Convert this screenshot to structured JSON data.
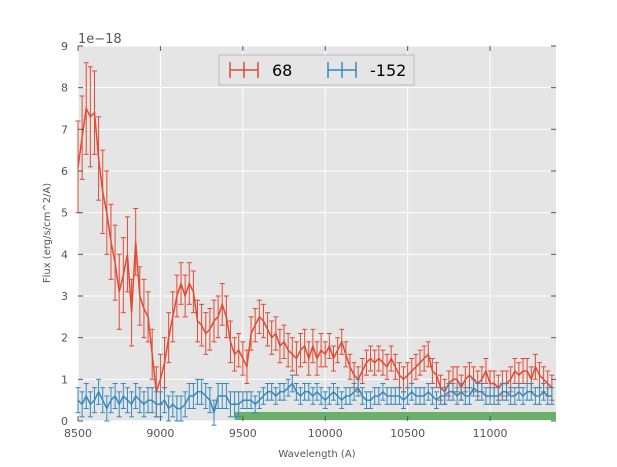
{
  "chart_data": {
    "type": "line",
    "title": "",
    "xlabel": "Wavelength (A)",
    "ylabel": "Flux (erg/s/cm^2/A)",
    "y_offset_label": "1e−18",
    "xlim": [
      8500,
      11400
    ],
    "ylim": [
      0,
      9
    ],
    "x_ticks": [
      "8500",
      "9000",
      "9500",
      "10000",
      "10500",
      "11000"
    ],
    "y_ticks": [
      "0",
      "1",
      "2",
      "3",
      "4",
      "5",
      "6",
      "7",
      "8",
      "9"
    ],
    "grid": true,
    "legend_placement": "top-center",
    "background_color": "#e5e5e5",
    "series": [
      {
        "name": "68",
        "color": "#e24a33",
        "x": [
          8500,
          8525,
          8550,
          8575,
          8600,
          8625,
          8650,
          8675,
          8700,
          8725,
          8750,
          8775,
          8800,
          8825,
          8850,
          8875,
          8900,
          8925,
          8950,
          8975,
          9000,
          9025,
          9050,
          9075,
          9100,
          9125,
          9150,
          9175,
          9200,
          9225,
          9250,
          9275,
          9300,
          9325,
          9350,
          9375,
          9400,
          9425,
          9450,
          9475,
          9500,
          9525,
          9550,
          9575,
          9600,
          9625,
          9650,
          9675,
          9700,
          9725,
          9750,
          9775,
          9800,
          9825,
          9850,
          9875,
          9900,
          9925,
          9950,
          9975,
          10000,
          10025,
          10050,
          10075,
          10100,
          10125,
          10150,
          10175,
          10200,
          10225,
          10250,
          10275,
          10300,
          10325,
          10350,
          10375,
          10400,
          10425,
          10450,
          10475,
          10500,
          10525,
          10550,
          10575,
          10600,
          10625,
          10650,
          10675,
          10700,
          10725,
          10750,
          10775,
          10800,
          10825,
          10850,
          10875,
          10900,
          10925,
          10950,
          10975,
          11000,
          11025,
          11050,
          11075,
          11100,
          11125,
          11150,
          11175,
          11200,
          11225,
          11250,
          11275,
          11300,
          11325,
          11350,
          11375
        ],
        "y": [
          6.1,
          6.8,
          7.5,
          7.3,
          7.4,
          6.3,
          5.5,
          5.0,
          4.3,
          3.8,
          3.1,
          3.5,
          4.0,
          2.6,
          4.3,
          3.0,
          2.7,
          2.5,
          1.6,
          0.7,
          1.0,
          1.4,
          2.0,
          2.5,
          3.0,
          3.3,
          3.0,
          3.3,
          3.1,
          2.4,
          2.3,
          2.1,
          2.2,
          2.4,
          2.5,
          2.8,
          2.5,
          1.9,
          1.6,
          1.7,
          1.5,
          1.3,
          2.1,
          2.3,
          2.5,
          2.4,
          2.2,
          2.0,
          2.1,
          1.8,
          1.9,
          1.7,
          1.6,
          1.5,
          1.7,
          1.8,
          1.5,
          1.8,
          1.5,
          1.7,
          1.6,
          1.8,
          1.5,
          1.7,
          1.9,
          1.6,
          1.3,
          1.1,
          1.0,
          1.2,
          1.4,
          1.5,
          1.4,
          1.5,
          1.4,
          1.3,
          1.5,
          1.3,
          1.1,
          1.0,
          1.1,
          1.2,
          1.3,
          1.4,
          1.5,
          1.6,
          1.2,
          1.1,
          0.8,
          0.7,
          0.9,
          1.0,
          1.0,
          0.8,
          1.0,
          1.1,
          1.0,
          0.9,
          1.0,
          1.2,
          0.9,
          0.9,
          0.8,
          0.9,
          0.9,
          1.0,
          1.2,
          1.1,
          1.2,
          1.2,
          1.0,
          1.3,
          1.1,
          1.0,
          0.9,
          0.8
        ],
        "yerr": [
          1.1,
          1.0,
          1.1,
          1.2,
          1.0,
          1.0,
          1.0,
          1.0,
          0.9,
          0.9,
          0.9,
          0.9,
          0.9,
          0.8,
          0.8,
          0.7,
          0.7,
          0.6,
          0.6,
          0.6,
          0.6,
          0.6,
          0.6,
          0.6,
          0.5,
          0.5,
          0.5,
          0.5,
          0.5,
          0.5,
          0.5,
          0.5,
          0.5,
          0.5,
          0.5,
          0.5,
          0.5,
          0.5,
          0.4,
          0.4,
          0.4,
          0.4,
          0.4,
          0.4,
          0.4,
          0.4,
          0.4,
          0.4,
          0.4,
          0.4,
          0.4,
          0.4,
          0.4,
          0.4,
          0.4,
          0.4,
          0.4,
          0.4,
          0.4,
          0.4,
          0.3,
          0.3,
          0.3,
          0.3,
          0.3,
          0.3,
          0.3,
          0.3,
          0.3,
          0.3,
          0.3,
          0.3,
          0.3,
          0.3,
          0.3,
          0.3,
          0.3,
          0.3,
          0.3,
          0.3,
          0.3,
          0.3,
          0.3,
          0.3,
          0.3,
          0.3,
          0.3,
          0.3,
          0.3,
          0.3,
          0.3,
          0.3,
          0.3,
          0.3,
          0.3,
          0.3,
          0.3,
          0.3,
          0.3,
          0.3,
          0.3,
          0.3,
          0.3,
          0.3,
          0.3,
          0.3,
          0.3,
          0.3,
          0.3,
          0.3,
          0.3,
          0.3,
          0.3,
          0.3,
          0.3,
          0.3
        ]
      },
      {
        "name": "-152",
        "color": "#348abd",
        "x": [
          8500,
          8525,
          8550,
          8575,
          8600,
          8625,
          8650,
          8675,
          8700,
          8725,
          8750,
          8775,
          8800,
          8825,
          8850,
          8875,
          8900,
          8925,
          8950,
          8975,
          9000,
          9025,
          9050,
          9075,
          9100,
          9125,
          9150,
          9175,
          9200,
          9225,
          9250,
          9275,
          9300,
          9325,
          9350,
          9375,
          9400,
          9425,
          9450,
          9475,
          9500,
          9525,
          9550,
          9575,
          9600,
          9625,
          9650,
          9675,
          9700,
          9725,
          9750,
          9775,
          9800,
          9825,
          9850,
          9875,
          9900,
          9925,
          9950,
          9975,
          10000,
          10025,
          10050,
          10075,
          10100,
          10125,
          10150,
          10175,
          10200,
          10225,
          10250,
          10275,
          10300,
          10325,
          10350,
          10375,
          10400,
          10425,
          10450,
          10475,
          10500,
          10525,
          10550,
          10575,
          10600,
          10625,
          10650,
          10675,
          10700,
          10725,
          10750,
          10775,
          10800,
          10825,
          10850,
          10875,
          10900,
          10925,
          10950,
          10975,
          11000,
          11025,
          11050,
          11075,
          11100,
          11125,
          11150,
          11175,
          11200,
          11225,
          11250,
          11275,
          11300,
          11325,
          11350,
          11375
        ],
        "y": [
          0.5,
          0.4,
          0.6,
          0.4,
          0.5,
          0.7,
          0.5,
          0.3,
          0.5,
          0.6,
          0.4,
          0.6,
          0.5,
          0.4,
          0.6,
          0.5,
          0.4,
          0.5,
          0.5,
          0.4,
          0.4,
          0.5,
          0.3,
          0.4,
          0.3,
          0.3,
          0.4,
          0.6,
          0.6,
          0.7,
          0.7,
          0.6,
          0.5,
          0.2,
          0.6,
          0.6,
          0.6,
          0.4,
          0.4,
          0.4,
          0.5,
          0.5,
          0.5,
          0.4,
          0.5,
          0.6,
          0.7,
          0.7,
          0.6,
          0.7,
          0.7,
          0.8,
          0.9,
          0.7,
          0.6,
          0.7,
          0.7,
          0.6,
          0.7,
          0.6,
          0.5,
          0.6,
          0.7,
          0.6,
          0.5,
          0.6,
          0.6,
          0.7,
          0.8,
          0.6,
          0.5,
          0.5,
          0.6,
          0.6,
          0.7,
          0.6,
          0.6,
          0.6,
          0.6,
          0.5,
          0.6,
          0.7,
          0.6,
          0.6,
          0.6,
          0.7,
          0.6,
          0.5,
          0.6,
          0.6,
          0.7,
          0.7,
          0.6,
          0.7,
          0.6,
          0.6,
          0.8,
          0.7,
          0.7,
          0.6,
          0.6,
          0.6,
          0.6,
          0.7,
          0.7,
          0.6,
          0.6,
          0.7,
          0.6,
          0.7,
          0.7,
          0.6,
          0.6,
          0.7,
          0.6,
          0.6
        ],
        "yerr": [
          0.3,
          0.3,
          0.3,
          0.3,
          0.3,
          0.3,
          0.3,
          0.3,
          0.3,
          0.3,
          0.3,
          0.3,
          0.3,
          0.3,
          0.3,
          0.3,
          0.3,
          0.3,
          0.3,
          0.3,
          0.3,
          0.3,
          0.3,
          0.3,
          0.3,
          0.3,
          0.3,
          0.3,
          0.3,
          0.3,
          0.3,
          0.3,
          0.3,
          0.3,
          0.3,
          0.3,
          0.3,
          0.3,
          0.3,
          0.3,
          0.2,
          0.2,
          0.2,
          0.2,
          0.2,
          0.2,
          0.2,
          0.2,
          0.2,
          0.2,
          0.2,
          0.2,
          0.2,
          0.2,
          0.2,
          0.2,
          0.2,
          0.2,
          0.2,
          0.2,
          0.2,
          0.2,
          0.2,
          0.2,
          0.2,
          0.2,
          0.2,
          0.2,
          0.2,
          0.2,
          0.2,
          0.2,
          0.2,
          0.2,
          0.2,
          0.2,
          0.2,
          0.2,
          0.2,
          0.2,
          0.2,
          0.2,
          0.2,
          0.2,
          0.2,
          0.2,
          0.2,
          0.2,
          0.2,
          0.2,
          0.2,
          0.2,
          0.2,
          0.2,
          0.2,
          0.2,
          0.2,
          0.2,
          0.2,
          0.2,
          0.2,
          0.2,
          0.2,
          0.2,
          0.2,
          0.2,
          0.2,
          0.2,
          0.2,
          0.2,
          0.2,
          0.2,
          0.2,
          0.2,
          0.2,
          0.2
        ]
      }
    ],
    "band": {
      "color": "#6aaf6a",
      "x_start": 9450,
      "x_end": 11400,
      "y_value": 0.12
    }
  }
}
